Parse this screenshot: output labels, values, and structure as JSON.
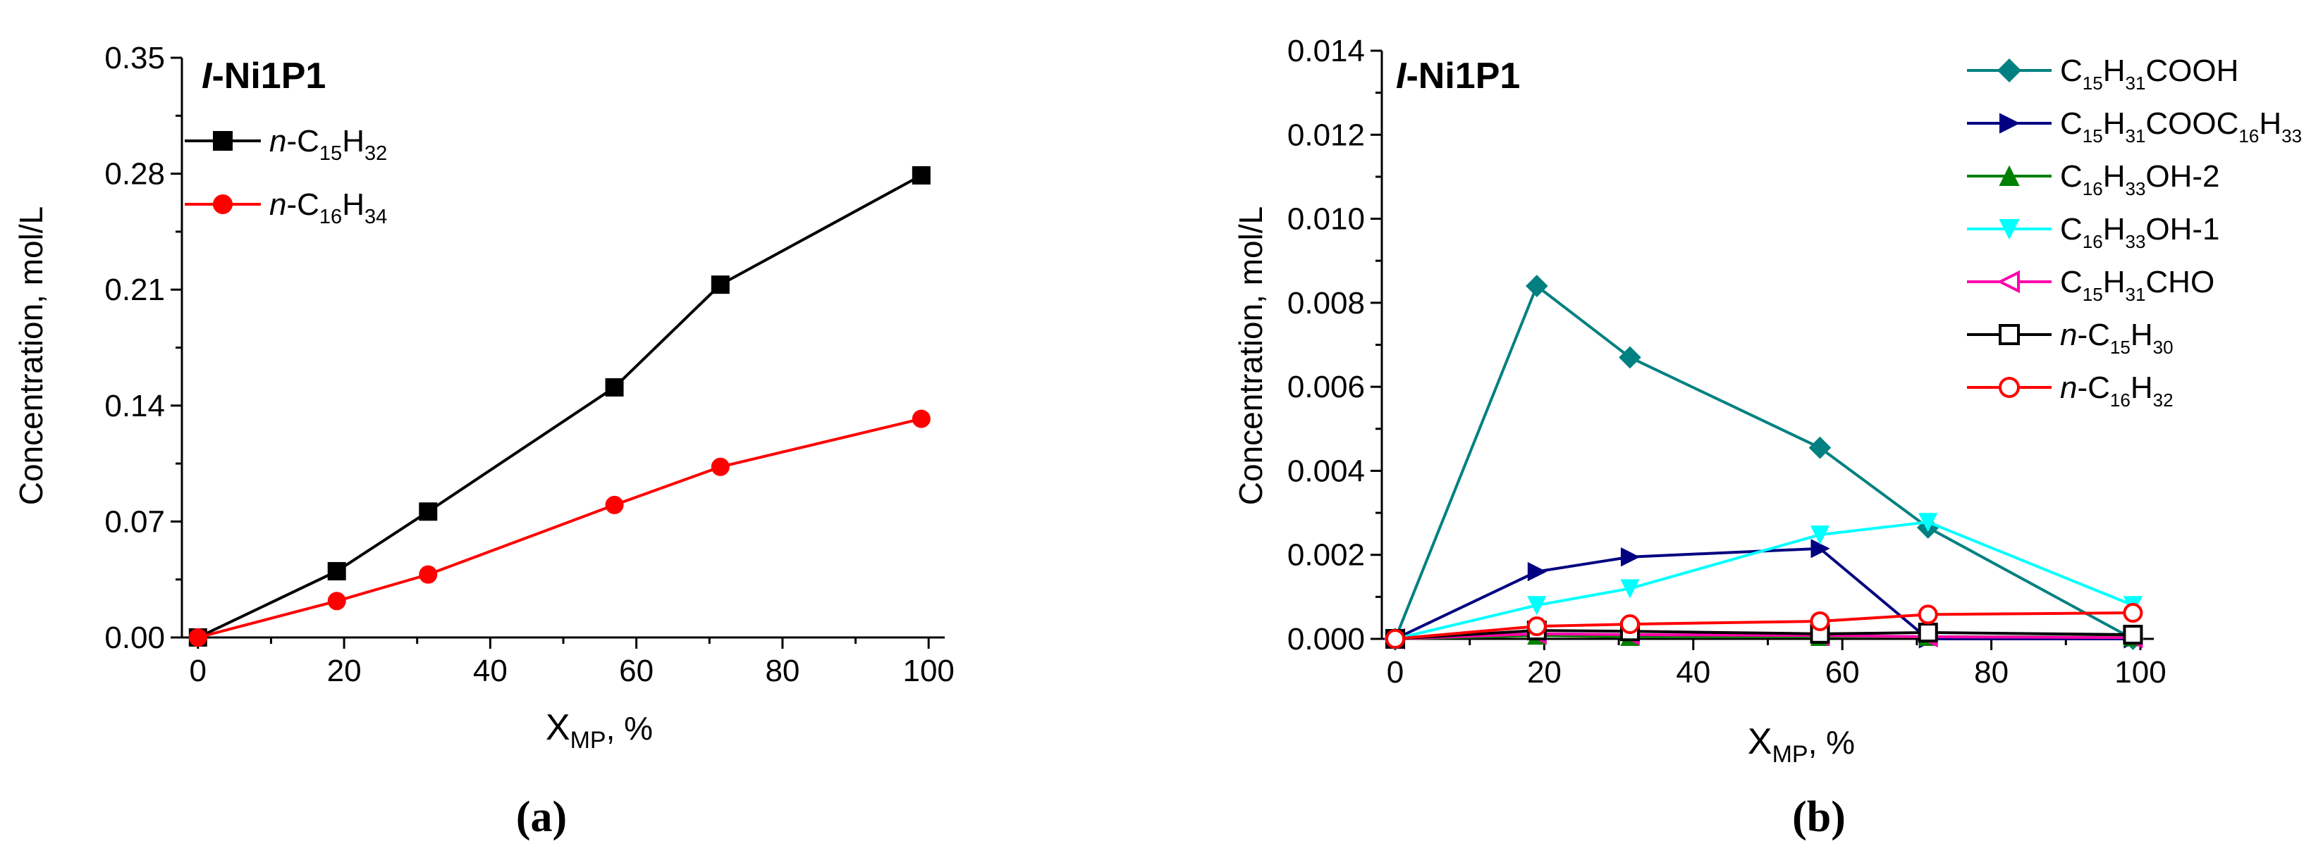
{
  "chart_data": [
    {
      "panel": "a",
      "caption": "(a)",
      "type": "line",
      "title_italic": "I",
      "title_rest": "-Ni1P1",
      "xlabel_main": "X",
      "xlabel_sub": "MP",
      "xlabel_unit": ", %",
      "ylabel": "Concentration, mol/L",
      "xlim": [
        0,
        100
      ],
      "ylim": [
        0,
        0.35
      ],
      "xticks": [
        0,
        20,
        40,
        60,
        80,
        100
      ],
      "xtick_labels": [
        "0",
        "20",
        "40",
        "60",
        "80",
        "100"
      ],
      "yticks": [
        0,
        0.07,
        0.14,
        0.21,
        0.28,
        0.35
      ],
      "ytick_labels": [
        "0.00",
        "0.07",
        "0.14",
        "0.21",
        "0.28",
        "0.35"
      ],
      "legend_position": "top-left",
      "series": [
        {
          "name": "n-C15H32",
          "legend": [
            [
              "n",
              "it"
            ],
            [
              "-C",
              "n"
            ],
            [
              "15",
              "sub"
            ],
            [
              "H",
              "n"
            ],
            [
              "32",
              "sub"
            ]
          ],
          "color": "#000000",
          "marker": "square",
          "filled": true,
          "x": [
            0,
            19,
            31.5,
            57,
            71.5,
            99
          ],
          "y": [
            0,
            0.04,
            0.076,
            0.151,
            0.213,
            0.279
          ]
        },
        {
          "name": "n-C16H34",
          "legend": [
            [
              "n",
              "it"
            ],
            [
              "-C",
              "n"
            ],
            [
              "16",
              "sub"
            ],
            [
              "H",
              "n"
            ],
            [
              "34",
              "sub"
            ]
          ],
          "color": "#ff0000",
          "marker": "circle",
          "filled": true,
          "x": [
            0,
            19,
            31.5,
            57,
            71.5,
            99
          ],
          "y": [
            0,
            0.022,
            0.038,
            0.08,
            0.103,
            0.132
          ]
        }
      ]
    },
    {
      "panel": "b",
      "caption": "(b)",
      "type": "line",
      "title_italic": "I",
      "title_rest": "-Ni1P1",
      "xlabel_main": "X",
      "xlabel_sub": "MP",
      "xlabel_unit": ", %",
      "ylabel": "Concentration, mol/L",
      "xlim": [
        0,
        100
      ],
      "ylim": [
        0,
        0.014
      ],
      "xticks": [
        0,
        20,
        40,
        60,
        80,
        100
      ],
      "xtick_labels": [
        "0",
        "20",
        "40",
        "60",
        "80",
        "100"
      ],
      "yticks": [
        0,
        0.002,
        0.004,
        0.006,
        0.008,
        0.01,
        0.012,
        0.014
      ],
      "ytick_labels": [
        "0.000",
        "0.002",
        "0.004",
        "0.006",
        "0.008",
        "0.010",
        "0.012",
        "0.014"
      ],
      "legend_position": "top-right",
      "series": [
        {
          "name": "C15H31COOH",
          "legend": [
            [
              "C",
              "n"
            ],
            [
              "15",
              "sub"
            ],
            [
              "H",
              "n"
            ],
            [
              "31",
              "sub"
            ],
            [
              "COOH",
              "n"
            ]
          ],
          "color": "#008080",
          "marker": "diamond",
          "filled": true,
          "x": [
            0,
            19,
            31.5,
            57,
            71.5,
            99
          ],
          "y": [
            0,
            0.0084,
            0.0067,
            0.00455,
            0.00265,
            0.0
          ]
        },
        {
          "name": "C15H31COOC16H33",
          "legend": [
            [
              "C",
              "n"
            ],
            [
              "15",
              "sub"
            ],
            [
              "H",
              "n"
            ],
            [
              "31",
              "sub"
            ],
            [
              "COOC",
              "n"
            ],
            [
              "16",
              "sub"
            ],
            [
              "H",
              "n"
            ],
            [
              "33",
              "sub"
            ]
          ],
          "color": "#000080",
          "marker": "triangle-right",
          "filled": true,
          "x": [
            0,
            19,
            31.5,
            57,
            71.5,
            99
          ],
          "y": [
            0,
            0.0016,
            0.00195,
            0.00215,
            0.0,
            0.0
          ]
        },
        {
          "name": "C16H33OH-2",
          "legend": [
            [
              "C",
              "n"
            ],
            [
              "16",
              "sub"
            ],
            [
              "H",
              "n"
            ],
            [
              "33",
              "sub"
            ],
            [
              "OH-2",
              "n"
            ]
          ],
          "color": "#008000",
          "marker": "triangle-up",
          "filled": true,
          "x": [
            0,
            19,
            31.5,
            57,
            71.5,
            99
          ],
          "y": [
            0,
            8e-05,
            5e-05,
            5e-05,
            5e-05,
            4e-05
          ]
        },
        {
          "name": "C16H33OH-1",
          "legend": [
            [
              "C",
              "n"
            ],
            [
              "16",
              "sub"
            ],
            [
              "H",
              "n"
            ],
            [
              "33",
              "sub"
            ],
            [
              "OH-1",
              "n"
            ]
          ],
          "color": "#00ffff",
          "marker": "triangle-down",
          "filled": true,
          "x": [
            0,
            19,
            31.5,
            57,
            71.5,
            99
          ],
          "y": [
            0,
            0.0008,
            0.0012,
            0.00248,
            0.00278,
            0.0008
          ]
        },
        {
          "name": "C15H31CHO",
          "legend": [
            [
              "C",
              "n"
            ],
            [
              "15",
              "sub"
            ],
            [
              "H",
              "n"
            ],
            [
              "31",
              "sub"
            ],
            [
              "CHO",
              "n"
            ]
          ],
          "color": "#ff00aa",
          "marker": "triangle-left",
          "filled": false,
          "x": [
            0,
            19,
            31.5,
            57,
            71.5,
            99
          ],
          "y": [
            0,
            0.00012,
            0.0001,
            8e-05,
            5e-05,
            3e-05
          ]
        },
        {
          "name": "n-C15H30",
          "legend": [
            [
              "n",
              "it"
            ],
            [
              "-C",
              "n"
            ],
            [
              "15",
              "sub"
            ],
            [
              "H",
              "n"
            ],
            [
              "30",
              "sub"
            ]
          ],
          "color": "#000000",
          "marker": "square",
          "filled": false,
          "x": [
            0,
            19,
            31.5,
            57,
            71.5,
            99
          ],
          "y": [
            0,
            0.0002,
            0.00018,
            0.00012,
            0.00015,
            0.0001
          ]
        },
        {
          "name": "n-C16H32",
          "legend": [
            [
              "n",
              "it"
            ],
            [
              "-C",
              "n"
            ],
            [
              "16",
              "sub"
            ],
            [
              "H",
              "n"
            ],
            [
              "32",
              "sub"
            ]
          ],
          "color": "#ff0000",
          "marker": "circle",
          "filled": false,
          "x": [
            0,
            19,
            31.5,
            57,
            71.5,
            99
          ],
          "y": [
            0,
            0.0003,
            0.00035,
            0.00042,
            0.00058,
            0.00062
          ]
        }
      ]
    }
  ]
}
